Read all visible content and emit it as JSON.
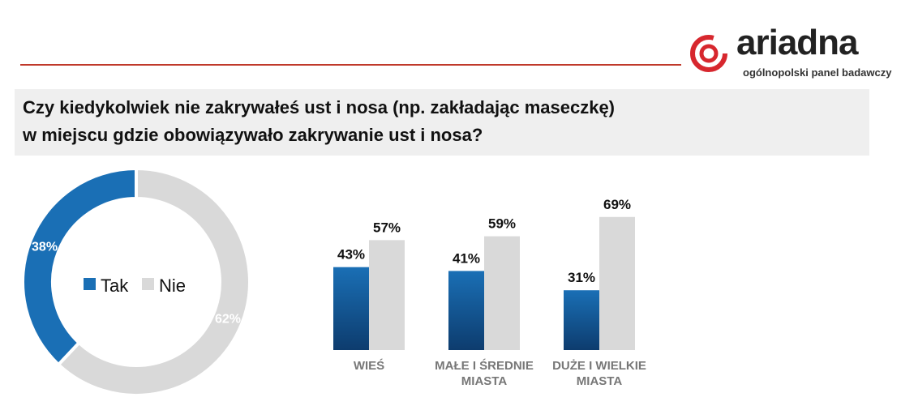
{
  "brand": {
    "name": "ariadna",
    "tagline": "ogólnopolski panel badawczy",
    "accent": "#d7272e"
  },
  "question": {
    "line1": "Czy kiedykolwiek nie zakrywałeś ust i nosa (np. zakładając maseczkę)",
    "line2": "w miejscu gdzie obowiązywało zakrywanie ust i nosa?"
  },
  "colors": {
    "tak": "#1a6fb5",
    "tak_dark": "#0d3c6e",
    "nie": "#d9d9d9",
    "label_dark": "#111111",
    "category": "#777777"
  },
  "chart_data": [
    {
      "type": "pie",
      "labels": [
        "Tak",
        "Nie"
      ],
      "values": [
        38,
        62
      ],
      "value_labels": [
        "38%",
        "62%"
      ],
      "legend": [
        "Tak",
        "Nie"
      ],
      "legend_position": "center"
    },
    {
      "type": "bar",
      "categories": [
        [
          "WIEŚ"
        ],
        [
          "MAŁE I ŚREDNIE",
          "MIASTA"
        ],
        [
          "DUŻE I WIELKIE",
          "MIASTA"
        ]
      ],
      "series": [
        {
          "name": "Tak",
          "values": [
            43,
            41,
            31
          ],
          "labels": [
            "43%",
            "41%",
            "31%"
          ]
        },
        {
          "name": "Nie",
          "values": [
            57,
            59,
            69
          ],
          "labels": [
            "57%",
            "59%",
            "69%"
          ]
        }
      ],
      "ylim": [
        0,
        100
      ],
      "grid": false
    }
  ]
}
